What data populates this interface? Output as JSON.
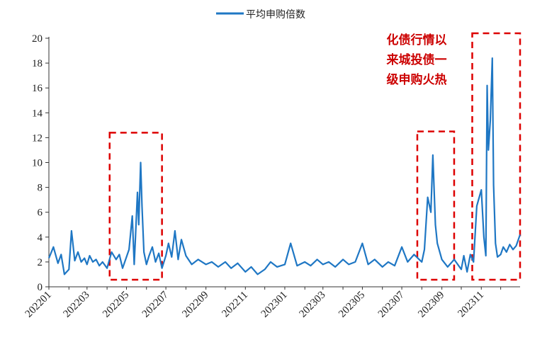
{
  "chart_data": {
    "type": "line",
    "title": "",
    "xlabel": "",
    "ylabel": "",
    "ylim": [
      0,
      20
    ],
    "yticks": [
      0,
      2,
      4,
      6,
      8,
      10,
      12,
      14,
      16,
      18,
      20
    ],
    "xticks": [
      "202201",
      "202203",
      "202205",
      "202207",
      "202209",
      "202211",
      "202301",
      "202303",
      "202305",
      "202307",
      "202309",
      "202311"
    ],
    "grid": false,
    "legend_placement": "top-center",
    "series": [
      {
        "name": "平均申购倍数",
        "color": "#1f77c4",
        "x": [
          "2022-01-01",
          "2022-01-08",
          "2022-01-15",
          "2022-01-20",
          "2022-01-25",
          "2022-02-01",
          "2022-02-05",
          "2022-02-10",
          "2022-02-15",
          "2022-02-20",
          "2022-02-25",
          "2022-03-01",
          "2022-03-05",
          "2022-03-10",
          "2022-03-15",
          "2022-03-20",
          "2022-03-25",
          "2022-04-01",
          "2022-04-08",
          "2022-04-15",
          "2022-04-20",
          "2022-04-25",
          "2022-05-01",
          "2022-05-05",
          "2022-05-10",
          "2022-05-13",
          "2022-05-15",
          "2022-05-18",
          "2022-05-20",
          "2022-05-23",
          "2022-05-25",
          "2022-05-28",
          "2022-06-01",
          "2022-06-05",
          "2022-06-10",
          "2022-06-15",
          "2022-06-20",
          "2022-06-25",
          "2022-07-01",
          "2022-07-05",
          "2022-07-10",
          "2022-07-15",
          "2022-07-20",
          "2022-07-25",
          "2022-08-01",
          "2022-08-10",
          "2022-08-20",
          "2022-09-01",
          "2022-09-10",
          "2022-09-20",
          "2022-10-01",
          "2022-10-10",
          "2022-10-20",
          "2022-11-01",
          "2022-11-10",
          "2022-11-20",
          "2022-12-01",
          "2022-12-10",
          "2022-12-20",
          "2023-01-01",
          "2023-01-10",
          "2023-01-20",
          "2023-02-01",
          "2023-02-10",
          "2023-02-20",
          "2023-03-01",
          "2023-03-10",
          "2023-03-20",
          "2023-04-01",
          "2023-04-10",
          "2023-04-20",
          "2023-05-01",
          "2023-05-10",
          "2023-05-20",
          "2023-06-01",
          "2023-06-10",
          "2023-06-20",
          "2023-07-01",
          "2023-07-10",
          "2023-07-20",
          "2023-08-01",
          "2023-08-05",
          "2023-08-10",
          "2023-08-15",
          "2023-08-18",
          "2023-08-22",
          "2023-08-25",
          "2023-09-01",
          "2023-09-10",
          "2023-09-20",
          "2023-10-01",
          "2023-10-05",
          "2023-10-10",
          "2023-10-15",
          "2023-10-20",
          "2023-10-25",
          "2023-11-01",
          "2023-11-05",
          "2023-11-08",
          "2023-11-10",
          "2023-11-12",
          "2023-11-15",
          "2023-11-18",
          "2023-11-20",
          "2023-11-23",
          "2023-11-26",
          "2023-12-01",
          "2023-12-05",
          "2023-12-10",
          "2023-12-15",
          "2023-12-20",
          "2023-12-25",
          "2023-12-31"
        ],
        "values": [
          2.3,
          3.2,
          1.9,
          2.6,
          1.0,
          1.4,
          4.5,
          2.1,
          2.8,
          2.0,
          2.3,
          1.8,
          2.5,
          2.0,
          2.2,
          1.7,
          2.0,
          1.5,
          2.8,
          2.2,
          2.6,
          1.5,
          2.4,
          3.0,
          5.7,
          1.8,
          4.0,
          7.6,
          5.0,
          10.0,
          6.5,
          2.8,
          1.8,
          2.5,
          3.2,
          2.0,
          2.7,
          1.5,
          2.5,
          3.5,
          2.4,
          4.5,
          2.2,
          3.8,
          2.5,
          1.8,
          2.2,
          1.8,
          2.0,
          1.6,
          2.0,
          1.5,
          1.9,
          1.2,
          1.6,
          1.0,
          1.4,
          2.0,
          1.6,
          1.8,
          3.5,
          1.7,
          2.0,
          1.7,
          2.2,
          1.8,
          2.0,
          1.6,
          2.2,
          1.8,
          2.0,
          3.5,
          1.8,
          2.2,
          1.6,
          2.0,
          1.7,
          3.2,
          2.0,
          2.6,
          2.0,
          3.0,
          7.2,
          6.0,
          10.6,
          5.0,
          3.5,
          2.2,
          1.6,
          2.2,
          1.4,
          2.5,
          1.2,
          2.6,
          2.0,
          6.5,
          7.8,
          4.0,
          2.5,
          16.2,
          11.0,
          13.4,
          18.4,
          8.2,
          3.5,
          2.4,
          2.6,
          3.2,
          2.8,
          3.4,
          3.0,
          3.3,
          4.2
        ]
      }
    ],
    "annotations": [
      {
        "text_lines": [
          "化债行情以",
          "来城投债一",
          "级申购火热"
        ],
        "color": "#cc0000"
      }
    ],
    "highlight_ranges": [
      {
        "start": "2022-04-05",
        "end": "2022-06-25",
        "y_top": 12.4
      },
      {
        "start": "2023-07-25",
        "end": "2023-09-20",
        "y_top": 12.5
      },
      {
        "start": "2023-10-18",
        "end": "2023-12-31",
        "y_top": 20.4
      }
    ]
  }
}
